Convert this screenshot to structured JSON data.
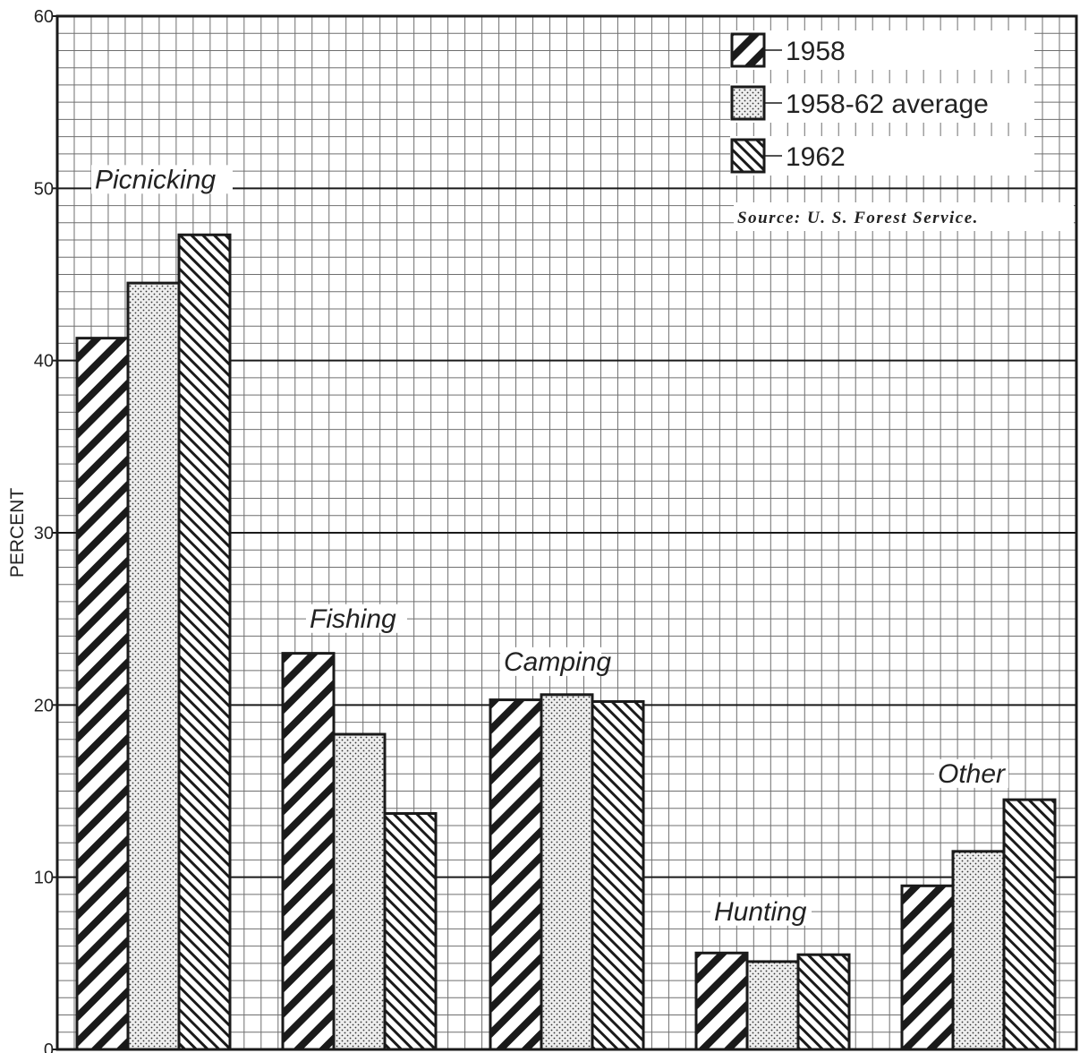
{
  "chart_data": {
    "type": "bar",
    "ylabel": "PERCENT",
    "xlabel": "",
    "title": "",
    "ylim": [
      0,
      60
    ],
    "yticks": [
      0,
      10,
      20,
      30,
      40,
      50,
      60
    ],
    "grid": true,
    "legend_position": "top-right",
    "source": "Source: U. S. Forest Service.",
    "categories": [
      "Picnicking",
      "Fishing",
      "Camping",
      "Hunting",
      "Other"
    ],
    "series": [
      {
        "name": "1958",
        "pattern": "wide-backslash-hatch",
        "values": [
          41.3,
          23.0,
          20.3,
          5.6,
          9.5
        ]
      },
      {
        "name": "1958-62 average",
        "pattern": "stipple",
        "values": [
          44.5,
          18.3,
          20.6,
          5.1,
          11.5
        ]
      },
      {
        "name": "1962",
        "pattern": "fine-slash-hatch",
        "values": [
          47.3,
          13.7,
          20.2,
          5.5,
          14.5
        ]
      }
    ],
    "colors": {
      "ink": "#1a1a1a",
      "grid_minor": "#6f6f6f",
      "grid_major": "#1a1a1a",
      "background": "#ffffff"
    }
  }
}
